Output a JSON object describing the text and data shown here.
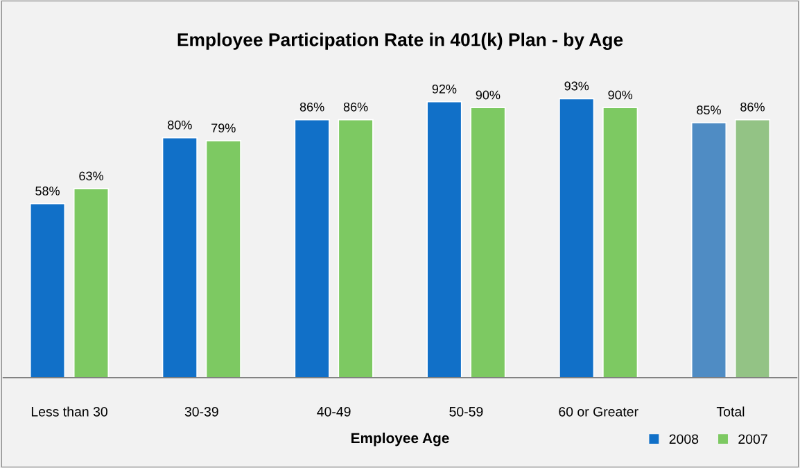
{
  "chart_data": {
    "type": "bar",
    "title": "Employee Participation Rate in 401(k) Plan - by Age",
    "xlabel": "Employee Age",
    "categories": [
      "Less than 30",
      "30-39",
      "40-49",
      "50-59",
      "60 or Greater",
      "Total"
    ],
    "series": [
      {
        "name": "2008",
        "color": "#1170c8",
        "colors": [
          "#1170c8",
          "#1170c8",
          "#1170c8",
          "#1170c8",
          "#1170c8",
          "#4f8cc4"
        ],
        "values": [
          58,
          80,
          86,
          92,
          93,
          85
        ],
        "value_labels": [
          "58%",
          "80%",
          "86%",
          "92%",
          "93%",
          "85%"
        ]
      },
      {
        "name": "2007",
        "color": "#7dc962",
        "colors": [
          "#7dc962",
          "#7dc962",
          "#7dc962",
          "#7dc962",
          "#7dc962",
          "#93c385"
        ],
        "values": [
          63,
          79,
          86,
          90,
          90,
          86
        ],
        "value_labels": [
          "63%",
          "79%",
          "86%",
          "90%",
          "90%",
          "86%"
        ]
      }
    ],
    "legend": "bottom right",
    "grid": false
  }
}
